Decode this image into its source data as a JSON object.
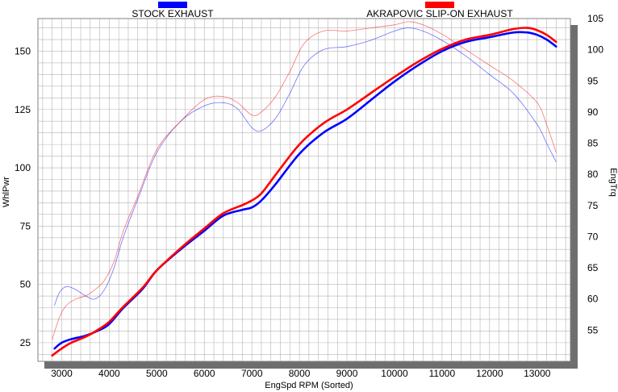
{
  "chart_data": {
    "type": "line",
    "xlabel": "EngSpd  RPM   (Sorted)",
    "ylabel_left": "WhlPwr",
    "ylabel_right": "EngTrq",
    "xlim": [
      2500,
      13700
    ],
    "ylim_left": [
      17,
      164
    ],
    "ylim_right": [
      50,
      105
    ],
    "x_ticks": [
      3000,
      4000,
      5000,
      6000,
      7000,
      8000,
      9000,
      10000,
      11000,
      12000,
      13000
    ],
    "y_ticks_left": [
      25,
      50,
      75,
      100,
      125,
      150
    ],
    "y_ticks_right": [
      55,
      60,
      65,
      70,
      75,
      80,
      85,
      90,
      95,
      100,
      105
    ],
    "grid": true,
    "legend": [
      {
        "label": "STOCK EXHAUST",
        "color": "#0000ff"
      },
      {
        "label": "AKRAPOVIC SLIP-ON EXHAUST",
        "color": "#ff0000"
      }
    ],
    "series": [
      {
        "name": "STOCK EXHAUST",
        "measure": "WhlPwr",
        "axis": "left",
        "color": "#0000ff",
        "weight": "thick",
        "x": [
          2850,
          3000,
          3200,
          3500,
          3800,
          4000,
          4300,
          4700,
          5000,
          5500,
          6000,
          6400,
          6800,
          7000,
          7200,
          7500,
          8000,
          8500,
          9000,
          9500,
          10000,
          10500,
          11000,
          11500,
          12000,
          12500,
          12800,
          13000,
          13200,
          13400
        ],
        "y": [
          22.5,
          25,
          26.5,
          28,
          30.5,
          33,
          40,
          48,
          56,
          65,
          73,
          79.5,
          82,
          83,
          86,
          93,
          106,
          115,
          121,
          129,
          137,
          144,
          150,
          154,
          156,
          158,
          158,
          157,
          155,
          152
        ]
      },
      {
        "name": "AKRAPOVIC SLIP-ON EXHAUST",
        "measure": "WhlPwr",
        "axis": "left",
        "color": "#ff0000",
        "weight": "thick",
        "x": [
          2800,
          3000,
          3200,
          3500,
          3800,
          4000,
          4300,
          4700,
          5000,
          5500,
          6000,
          6400,
          6800,
          7000,
          7200,
          7500,
          8000,
          8500,
          9000,
          9500,
          10000,
          10500,
          11000,
          11500,
          12000,
          12500,
          12800,
          13000,
          13200,
          13400
        ],
        "y": [
          19.5,
          22.5,
          25,
          27.5,
          31,
          34,
          40.5,
          48.5,
          56,
          65.5,
          74,
          80.5,
          84,
          86,
          89,
          97,
          110,
          119,
          125,
          132,
          139,
          145.5,
          151,
          155,
          157,
          159.5,
          160,
          159,
          157,
          154
        ]
      },
      {
        "name": "STOCK EXHAUST",
        "measure": "EngTrq",
        "axis": "right",
        "color": "#0000ff",
        "weight": "thin",
        "x": [
          2850,
          2950,
          3100,
          3300,
          3500,
          3700,
          3900,
          4100,
          4300,
          4600,
          5000,
          5500,
          6000,
          6400,
          6700,
          7000,
          7200,
          7500,
          7800,
          8100,
          8500,
          9000,
          9500,
          10000,
          10300,
          10600,
          11000,
          11500,
          12000,
          12500,
          13000,
          13200,
          13400
        ],
        "y": [
          59,
          61,
          62,
          61.5,
          60.5,
          60,
          61.5,
          65,
          70,
          76,
          83.5,
          88.5,
          91,
          91.5,
          90.5,
          87.5,
          87,
          89,
          93,
          97.5,
          100,
          100.5,
          101.5,
          103,
          103.5,
          103,
          101.5,
          99,
          96,
          93,
          88,
          85,
          82
        ]
      },
      {
        "name": "AKRAPOVIC SLIP-ON EXHAUST",
        "measure": "EngTrq",
        "axis": "right",
        "color": "#ff0000",
        "weight": "thin",
        "x": [
          2800,
          2950,
          3100,
          3300,
          3500,
          3700,
          3900,
          4100,
          4300,
          4600,
          5000,
          5500,
          6000,
          6400,
          6700,
          7000,
          7200,
          7500,
          7800,
          8100,
          8500,
          9000,
          9500,
          10000,
          10300,
          10600,
          11000,
          11500,
          12000,
          12500,
          13000,
          13200,
          13400
        ],
        "y": [
          53.5,
          57,
          59,
          60,
          60.5,
          61.5,
          63,
          66,
          71,
          76.5,
          84,
          88.5,
          92,
          92.5,
          91.5,
          89.5,
          90,
          92.5,
          96.5,
          101,
          103,
          103,
          103.5,
          104,
          104.5,
          104,
          102.5,
          100,
          97.5,
          95,
          91.5,
          88,
          83.5
        ]
      }
    ]
  }
}
